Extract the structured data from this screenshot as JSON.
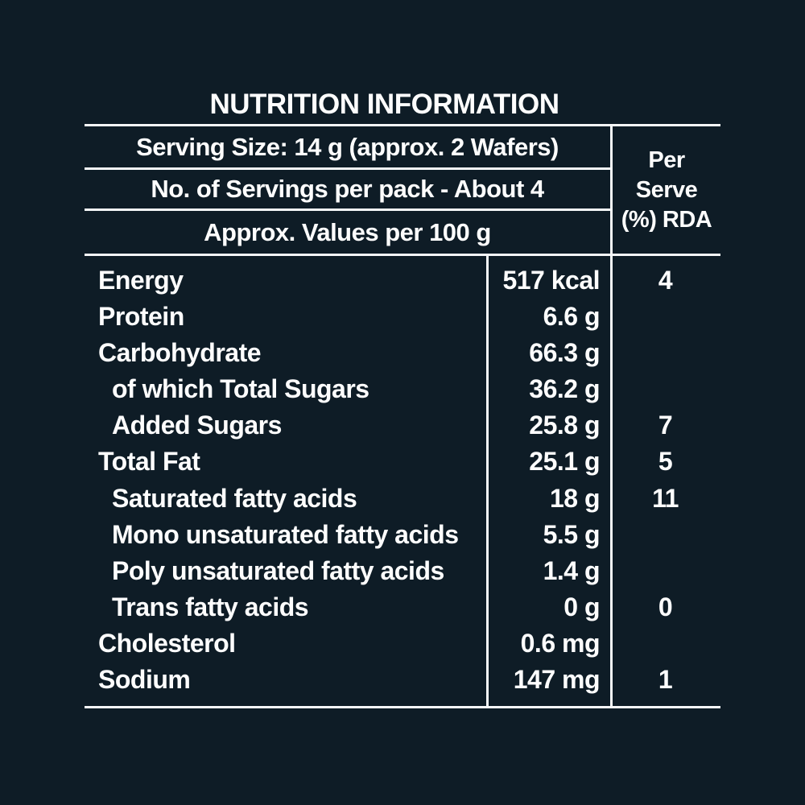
{
  "label": {
    "title": "NUTRITION INFORMATION",
    "header": {
      "serving_size": "Serving Size: 14 g (approx. 2 Wafers)",
      "servings_per_pack": "No. of Servings per pack - About 4",
      "values_basis": "Approx. Values per 100 g",
      "per_serve_rda": [
        "Per",
        "Serve",
        "(%) RDA"
      ]
    },
    "rows": [
      {
        "name": "Energy",
        "indent": false,
        "value": "517 kcal",
        "rda": "4"
      },
      {
        "name": "Protein",
        "indent": false,
        "value": "6.6 g",
        "rda": ""
      },
      {
        "name": "Carbohydrate",
        "indent": false,
        "value": "66.3 g",
        "rda": ""
      },
      {
        "name": "of which Total Sugars",
        "indent": true,
        "value": "36.2 g",
        "rda": ""
      },
      {
        "name": "Added Sugars",
        "indent": true,
        "value": "25.8 g",
        "rda": "7"
      },
      {
        "name": "Total Fat",
        "indent": false,
        "value": "25.1 g",
        "rda": "5"
      },
      {
        "name": "Saturated fatty acids",
        "indent": true,
        "value": "18 g",
        "rda": "11"
      },
      {
        "name": "Mono unsaturated fatty acids",
        "indent": true,
        "value": "5.5 g",
        "rda": ""
      },
      {
        "name": "Poly unsaturated fatty acids",
        "indent": true,
        "value": "1.4 g",
        "rda": ""
      },
      {
        "name": "Trans fatty acids",
        "indent": true,
        "value": "0 g",
        "rda": "0"
      },
      {
        "name": "Cholesterol",
        "indent": false,
        "value": "0.6 mg",
        "rda": ""
      },
      {
        "name": "Sodium",
        "indent": false,
        "value": "147 mg",
        "rda": "1"
      }
    ],
    "colors": {
      "background": "#0e1c26",
      "text": "#fdfdfd",
      "line": "#f6f8f9"
    }
  }
}
